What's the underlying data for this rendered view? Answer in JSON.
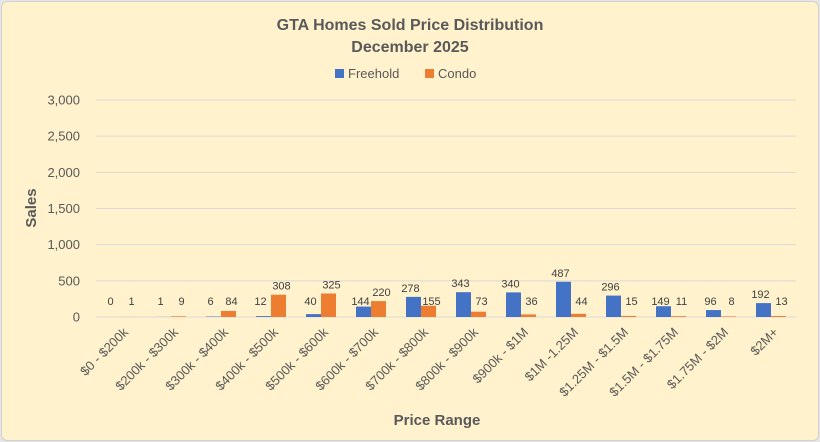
{
  "chart_data": {
    "type": "bar",
    "title": "GTA Homes Sold Price Distribution",
    "subtitle": "December 2025",
    "xlabel": "Price Range",
    "ylabel": "Sales",
    "ylim": [
      0,
      3000
    ],
    "yticks": [
      0,
      500,
      1000,
      1500,
      2000,
      2500,
      3000
    ],
    "ytick_labels": [
      "0",
      "500",
      "1,000",
      "1,500",
      "2,000",
      "2,500",
      "3,000"
    ],
    "grid": true,
    "legend_position": "top-center",
    "categories": [
      "$0 - $200k",
      "$200k - $300k",
      "$300k - $400k",
      "$400k - $500k",
      "$500k - $600k",
      "$600k - $700k",
      "$700k - $800k",
      "$800k - $900k",
      "$900k - $1M",
      "$1M -1.25M",
      "$1.25M - $1.5M",
      "$1.5M - $1.75M",
      "$1.75M - $2M",
      "$2M+"
    ],
    "series": [
      {
        "name": "Freehold",
        "color": "#4472c4",
        "values": [
          0,
          1,
          6,
          12,
          40,
          144,
          278,
          343,
          340,
          487,
          296,
          149,
          96,
          192
        ]
      },
      {
        "name": "Condo",
        "color": "#ed7d31",
        "values": [
          1,
          9,
          84,
          308,
          325,
          220,
          155,
          73,
          36,
          44,
          15,
          11,
          8,
          13
        ]
      }
    ]
  }
}
